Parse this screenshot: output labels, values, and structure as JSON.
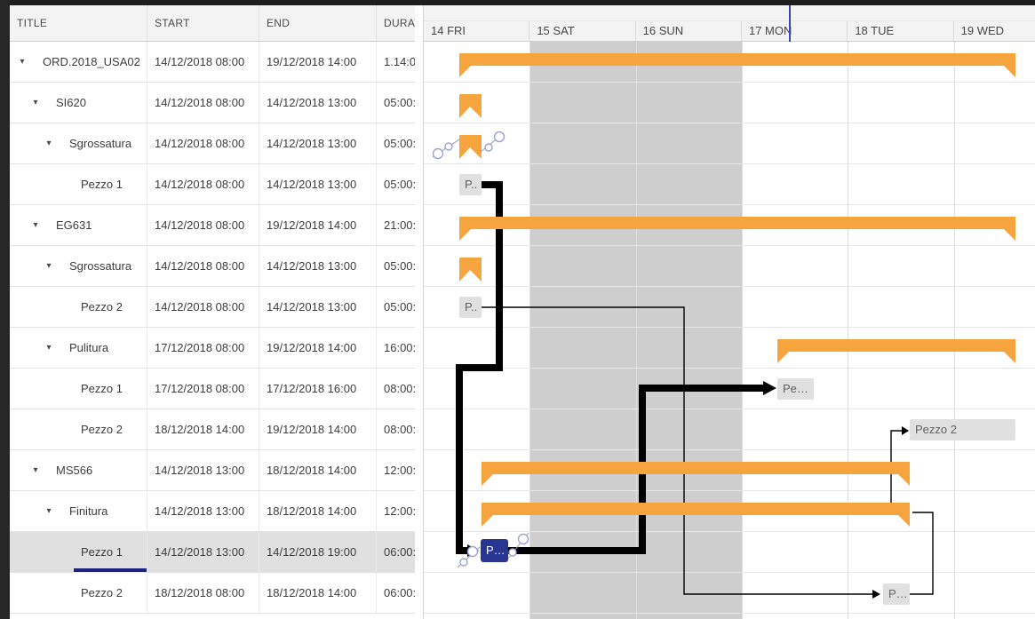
{
  "table": {
    "columns": {
      "title": "TITLE",
      "start": "START",
      "end": "END",
      "duration": "DURATION"
    },
    "rows": [
      {
        "title": "ORD.2018_USA02",
        "start": "14/12/2018 08:00",
        "end": "19/12/2018 14:00",
        "duration": "1.14:0",
        "level": 0,
        "expanded": "▾",
        "selected": false
      },
      {
        "title": "SI620",
        "start": "14/12/2018 08:00",
        "end": "14/12/2018 13:00",
        "duration": "05:00:",
        "level": 1,
        "expanded": "▾",
        "selected": false
      },
      {
        "title": "Sgrossatura",
        "start": "14/12/2018 08:00",
        "end": "14/12/2018 13:00",
        "duration": "05:00:",
        "level": 2,
        "expanded": "▾",
        "selected": false
      },
      {
        "title": "Pezzo 1",
        "start": "14/12/2018 08:00",
        "end": "14/12/2018 13:00",
        "duration": "05:00:",
        "level": 3,
        "expanded": "",
        "selected": false
      },
      {
        "title": "EG631",
        "start": "14/12/2018 08:00",
        "end": "19/12/2018 14:00",
        "duration": "21:00:",
        "level": 1,
        "expanded": "▾",
        "selected": false
      },
      {
        "title": "Sgrossatura",
        "start": "14/12/2018 08:00",
        "end": "14/12/2018 13:00",
        "duration": "05:00:",
        "level": 2,
        "expanded": "▾",
        "selected": false
      },
      {
        "title": "Pezzo 2",
        "start": "14/12/2018 08:00",
        "end": "14/12/2018 13:00",
        "duration": "05:00:",
        "level": 3,
        "expanded": "",
        "selected": false
      },
      {
        "title": "Pulitura",
        "start": "17/12/2018 08:00",
        "end": "19/12/2018 14:00",
        "duration": "16:00:",
        "level": 2,
        "expanded": "▾",
        "selected": false
      },
      {
        "title": "Pezzo 1",
        "start": "17/12/2018 08:00",
        "end": "17/12/2018 16:00",
        "duration": "08:00:",
        "level": 3,
        "expanded": "",
        "selected": false
      },
      {
        "title": "Pezzo 2",
        "start": "18/12/2018 14:00",
        "end": "19/12/2018 14:00",
        "duration": "08:00:",
        "level": 3,
        "expanded": "",
        "selected": false
      },
      {
        "title": "MS566",
        "start": "14/12/2018 13:00",
        "end": "18/12/2018 14:00",
        "duration": "12:00:",
        "level": 1,
        "expanded": "▾",
        "selected": false
      },
      {
        "title": "Finitura",
        "start": "14/12/2018 13:00",
        "end": "18/12/2018 14:00",
        "duration": "12:00:",
        "level": 2,
        "expanded": "▾",
        "selected": false
      },
      {
        "title": "Pezzo 1",
        "start": "14/12/2018 13:00",
        "end": "14/12/2018 19:00",
        "duration": "06:00:",
        "level": 3,
        "expanded": "",
        "selected": true
      },
      {
        "title": "Pezzo 2",
        "start": "18/12/2018 08:00",
        "end": "18/12/2018 14:00",
        "duration": "06:00:",
        "level": 3,
        "expanded": "",
        "selected": false
      }
    ]
  },
  "timeline": {
    "days": [
      "14 FRI",
      "15 SAT",
      "16 SUN",
      "17 MON",
      "18 TUE",
      "19 WED"
    ],
    "weekend_days": [
      "15 SAT",
      "16 SUN"
    ],
    "labels": {
      "pezzo1_sgrossatura_si620": "P..",
      "pezzo2_sgrossatura_eg631": "P..",
      "pezzo1_pulitura": "Pe…",
      "pezzo2_pulitura": "Pezzo 2",
      "pezzo1_finitura": "P…",
      "pezzo2_finitura": "P…"
    }
  },
  "colors": {
    "summary_bar": "#f6a43e",
    "task_bar": "#e0e0e0",
    "selected_task_bar": "#283593",
    "weekend_shade": "#cecece",
    "dependency_line": "#000000",
    "selection_underline": "#1a237e",
    "header_marker_line": "#3949ab"
  }
}
